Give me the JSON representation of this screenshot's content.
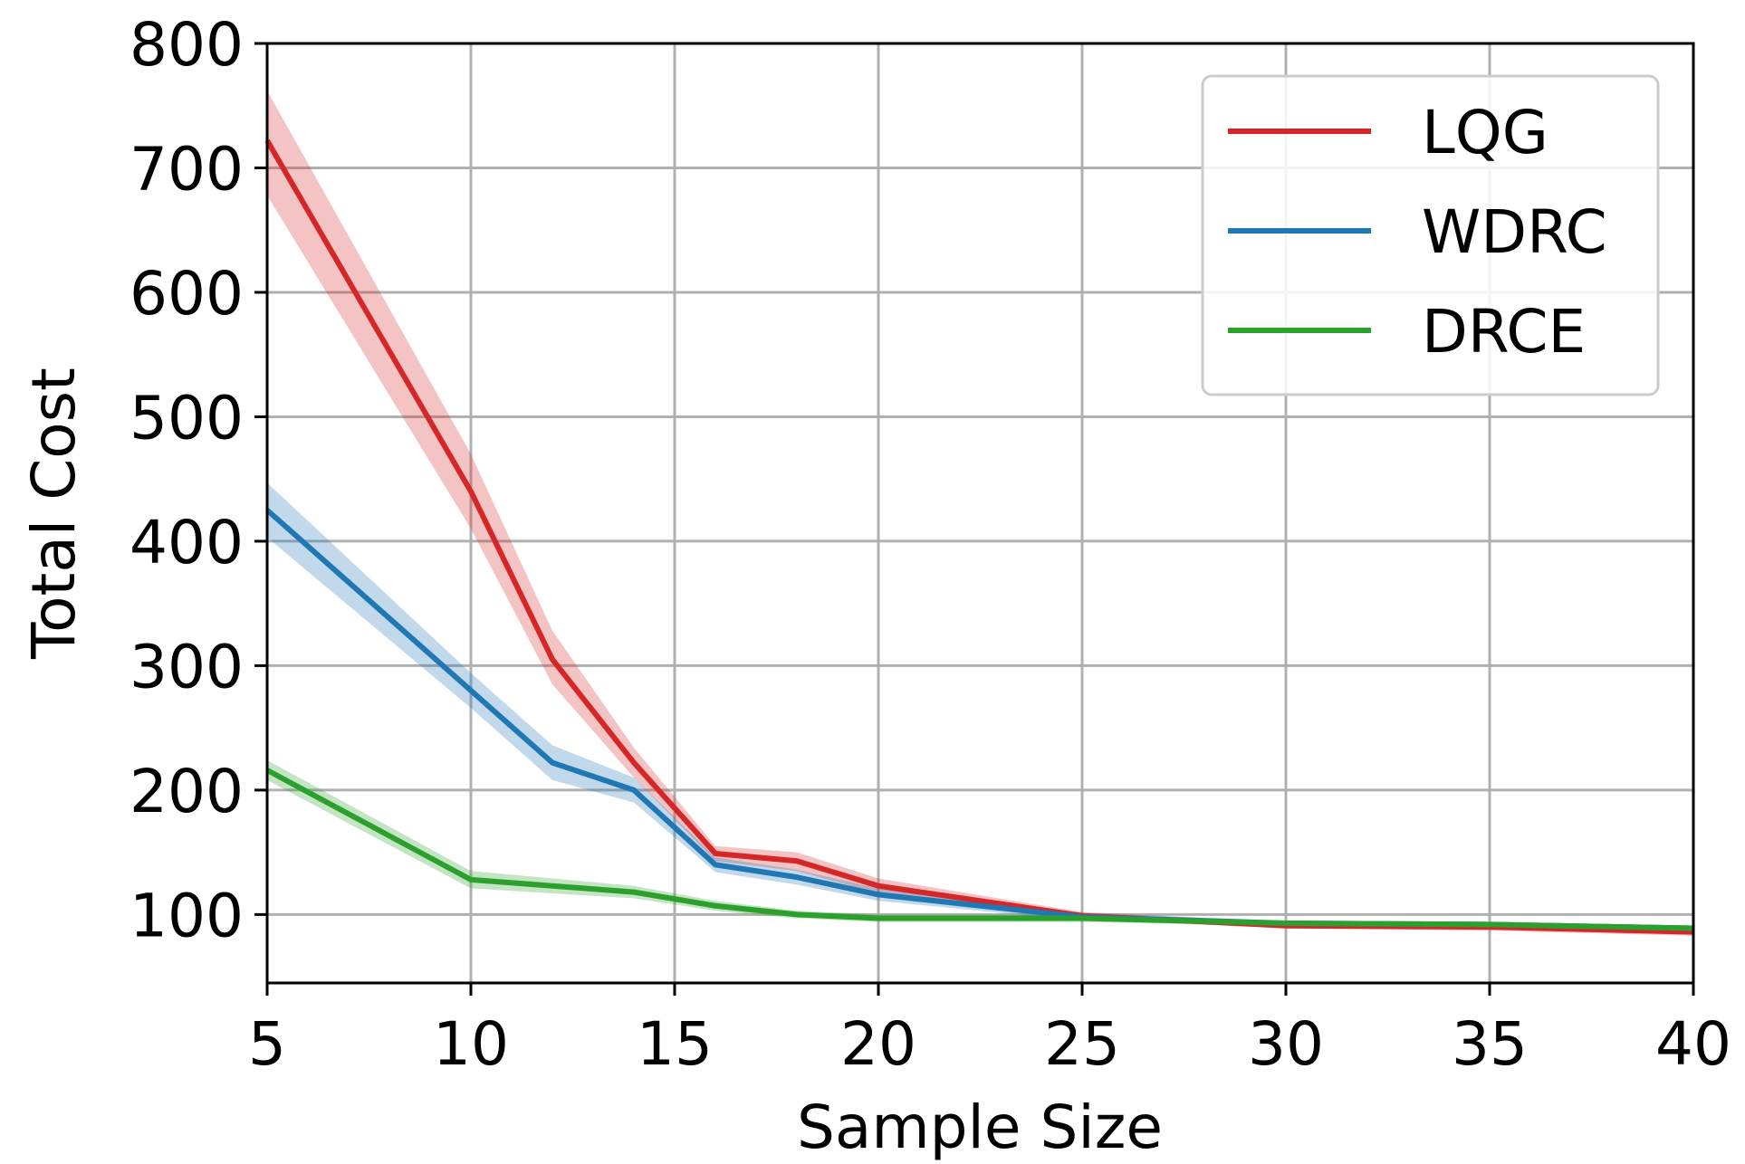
{
  "chart_data": {
    "type": "line",
    "xlabel": "Sample Size",
    "ylabel": "Total Cost",
    "xlim": [
      5,
      40
    ],
    "ylim": [
      45,
      800
    ],
    "xticks": [
      5,
      10,
      15,
      20,
      25,
      30,
      35,
      40
    ],
    "yticks": [
      100,
      200,
      300,
      400,
      500,
      600,
      700,
      800
    ],
    "grid": true,
    "legend_position": "top-right",
    "x": [
      5,
      10,
      12,
      14,
      16,
      18,
      20,
      25,
      30,
      35,
      40
    ],
    "series": [
      {
        "name": "LQG",
        "color": "#d62728",
        "values": [
          722,
          440,
          305,
          222,
          149,
          143,
          123,
          99,
          91,
          90,
          86
        ],
        "band_low": [
          678,
          410,
          285,
          210,
          143,
          135,
          117,
          96,
          89,
          87,
          83
        ],
        "band_high": [
          762,
          470,
          328,
          234,
          155,
          150,
          129,
          102,
          94,
          93,
          89
        ]
      },
      {
        "name": "WDRC",
        "color": "#1f77b4",
        "values": [
          425,
          280,
          222,
          200,
          140,
          130,
          116,
          98,
          93,
          92,
          89
        ],
        "band_low": [
          403,
          266,
          208,
          190,
          134,
          124,
          111,
          95,
          91,
          90,
          87
        ],
        "band_high": [
          447,
          294,
          236,
          210,
          146,
          136,
          121,
          101,
          95,
          94,
          91
        ]
      },
      {
        "name": "DRCE",
        "color": "#2ca02c",
        "values": [
          216,
          128,
          123,
          118,
          107,
          100,
          97,
          97,
          93,
          92,
          89
        ],
        "band_low": [
          208,
          121,
          117,
          113,
          103,
          97,
          94,
          94,
          91,
          90,
          87
        ],
        "band_high": [
          224,
          135,
          129,
          123,
          111,
          103,
          100,
          100,
          95,
          94,
          91
        ]
      }
    ]
  }
}
